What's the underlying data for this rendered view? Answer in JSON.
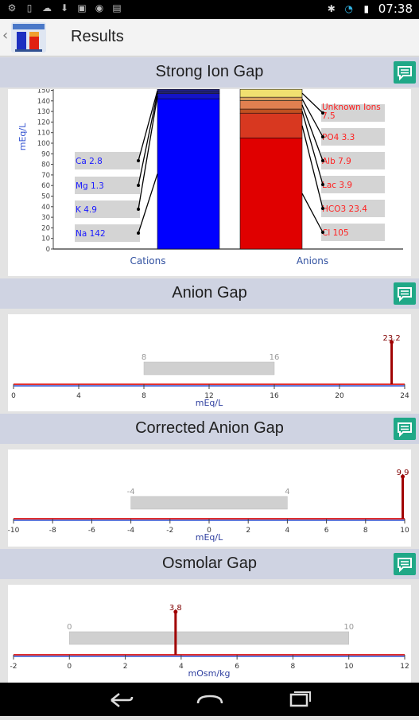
{
  "status_bar": {
    "time": "07:38"
  },
  "app_bar": {
    "title": "Results"
  },
  "sections": {
    "sig": {
      "title": "Strong Ion Gap"
    },
    "ag": {
      "title": "Anion Gap"
    },
    "cag": {
      "title": "Corrected Anion Gap"
    },
    "og": {
      "title": "Osmolar Gap"
    }
  },
  "sig_chart": {
    "type": "bar",
    "ylabel": "mEq/L",
    "ylim": [
      0,
      150
    ],
    "yticks": [
      0,
      10,
      20,
      30,
      40,
      50,
      60,
      70,
      80,
      90,
      100,
      110,
      120,
      130,
      140,
      150
    ],
    "categories": [
      "Cations",
      "Anions"
    ],
    "cations": [
      {
        "label": "Na 142",
        "value": 142,
        "color": "#0000ff"
      },
      {
        "label": "K 4.9",
        "value": 4.9,
        "color": "#1414c8"
      },
      {
        "label": "Mg 1.3",
        "value": 1.3,
        "color": "#3030a0"
      },
      {
        "label": "Ca 2.8",
        "value": 2.8,
        "color": "#202080"
      }
    ],
    "anions": [
      {
        "label": "Cl 105",
        "value": 105,
        "color": "#e00000"
      },
      {
        "label": "HCO3 23.4",
        "value": 23.4,
        "color": "#d83820"
      },
      {
        "label": "Lac 3.9",
        "value": 3.9,
        "color": "#c05020"
      },
      {
        "label": "Alb 7.9",
        "value": 7.9,
        "color": "#e08050"
      },
      {
        "label": "PO4 3.3",
        "value": 3.3,
        "color": "#d8a060"
      },
      {
        "label": "Unknown Ions 7.5",
        "value": 7.5,
        "color": "#f0e070"
      }
    ]
  },
  "ag_chart": {
    "type": "range",
    "xlabel": "mEq/L",
    "xlim": [
      0,
      24
    ],
    "xticks": [
      0,
      4,
      8,
      12,
      16,
      20,
      24
    ],
    "normal_range": [
      8,
      16
    ],
    "value": 23.2,
    "value_label": "23.2"
  },
  "cag_chart": {
    "type": "range",
    "xlabel": "mEq/L",
    "xlim": [
      -10,
      10
    ],
    "xticks": [
      -10,
      -8,
      -6,
      -4,
      -2,
      0,
      2,
      4,
      6,
      8,
      10
    ],
    "normal_range": [
      -4,
      4
    ],
    "value": 9.9,
    "value_label": "9.9"
  },
  "og_chart": {
    "type": "range",
    "xlabel": "mOsm/kg",
    "xlim": [
      -2,
      12
    ],
    "xticks": [
      -2,
      0,
      2,
      4,
      6,
      8,
      10,
      12
    ],
    "normal_range": [
      0,
      10
    ],
    "value": 3.8,
    "value_label": "3.8"
  },
  "colors": {
    "header_bg": "#cfd3e2",
    "info_button": "#1fa887",
    "range_bar": "#d0d0d0",
    "value_line": "#a00000",
    "axis_red": "#e03030",
    "axis_blue": "#3050d0"
  }
}
